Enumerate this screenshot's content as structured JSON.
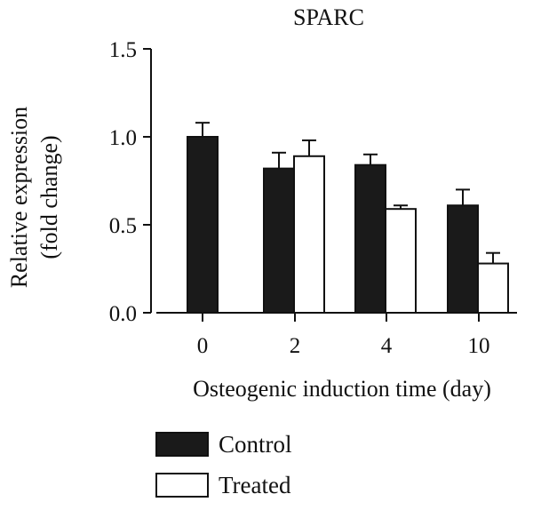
{
  "chart_data": {
    "type": "bar",
    "title": "SPARC",
    "xlabel": "Osteogenic induction time (day)",
    "ylabel_line1": "Relative expression",
    "ylabel_line2": "(fold change)",
    "ylim": [
      0,
      1.5
    ],
    "yticks": [
      0.0,
      0.5,
      1.0,
      1.5
    ],
    "ytick_labels": [
      "0.0",
      "0.5",
      "1.0",
      "1.5"
    ],
    "categories": [
      "0",
      "2",
      "4",
      "10"
    ],
    "grid": false,
    "legend_position": "bottom-left",
    "series": [
      {
        "name": "Control",
        "fill": "#1a1a1a",
        "values": [
          1.0,
          0.82,
          0.84,
          0.61
        ],
        "errors": [
          0.08,
          0.09,
          0.06,
          0.09
        ]
      },
      {
        "name": "Treated",
        "fill": "#ffffff",
        "values": [
          null,
          0.89,
          0.59,
          0.28
        ],
        "errors": [
          null,
          0.09,
          0.02,
          0.06
        ]
      }
    ]
  }
}
